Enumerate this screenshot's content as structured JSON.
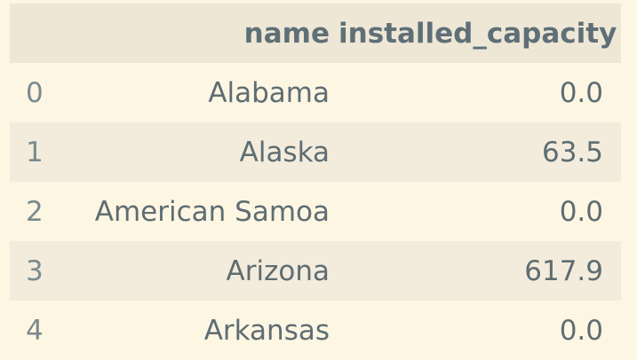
{
  "table": {
    "columns": {
      "index": "",
      "name": "name",
      "installed_capacity": "installed_capacity"
    },
    "rows": [
      {
        "index": "0",
        "name": "Alabama",
        "installed_capacity": "0.0"
      },
      {
        "index": "1",
        "name": "Alaska",
        "installed_capacity": "63.5"
      },
      {
        "index": "2",
        "name": "American Samoa",
        "installed_capacity": "0.0"
      },
      {
        "index": "3",
        "name": "Arizona",
        "installed_capacity": "617.9"
      },
      {
        "index": "4",
        "name": "Arkansas",
        "installed_capacity": "0.0"
      }
    ]
  },
  "colors": {
    "background": "#fdf6e3",
    "header_background": "#eee7d6",
    "striped_row": "#f3ecdd",
    "text": "#5e6d71"
  }
}
